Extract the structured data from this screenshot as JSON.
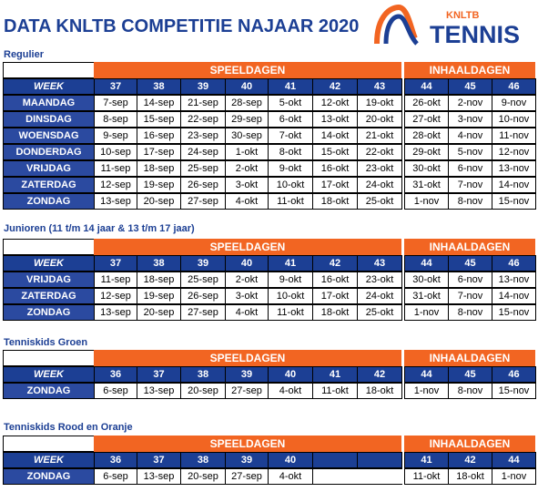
{
  "header": {
    "title": "DATA KNLTB COMPETITIE NAJAAR 2020",
    "logo": {
      "small": "KNLTB",
      "large": "TENNIS"
    }
  },
  "sections": [
    {
      "title": "Regulier",
      "group_1": "SPEELDAGEN",
      "group_2": "INHAALDAGEN",
      "week_label": "WEEK",
      "weeks": [
        "37",
        "38",
        "39",
        "40",
        "41",
        "42",
        "43",
        "44",
        "45",
        "46"
      ],
      "rows": [
        {
          "day": "MAANDAG",
          "dates": [
            "7-sep",
            "14-sep",
            "21-sep",
            "28-sep",
            "5-okt",
            "12-okt",
            "19-okt",
            "26-okt",
            "2-nov",
            "9-nov"
          ]
        },
        {
          "day": "DINSDAG",
          "dates": [
            "8-sep",
            "15-sep",
            "22-sep",
            "29-sep",
            "6-okt",
            "13-okt",
            "20-okt",
            "27-okt",
            "3-nov",
            "10-nov"
          ]
        },
        {
          "day": "WOENSDAG",
          "dates": [
            "9-sep",
            "16-sep",
            "23-sep",
            "30-sep",
            "7-okt",
            "14-okt",
            "21-okt",
            "28-okt",
            "4-nov",
            "11-nov"
          ]
        },
        {
          "day": "DONDERDAG",
          "dates": [
            "10-sep",
            "17-sep",
            "24-sep",
            "1-okt",
            "8-okt",
            "15-okt",
            "22-okt",
            "29-okt",
            "5-nov",
            "12-nov"
          ]
        },
        {
          "day": "VRIJDAG",
          "dates": [
            "11-sep",
            "18-sep",
            "25-sep",
            "2-okt",
            "9-okt",
            "16-okt",
            "23-okt",
            "30-okt",
            "6-nov",
            "13-nov"
          ]
        },
        {
          "day": "ZATERDAG",
          "dates": [
            "12-sep",
            "19-sep",
            "26-sep",
            "3-okt",
            "10-okt",
            "17-okt",
            "24-okt",
            "31-okt",
            "7-nov",
            "14-nov"
          ]
        },
        {
          "day": "ZONDAG",
          "dates": [
            "13-sep",
            "20-sep",
            "27-sep",
            "4-okt",
            "11-okt",
            "18-okt",
            "25-okt",
            "1-nov",
            "8-nov",
            "15-nov"
          ]
        }
      ]
    },
    {
      "title": "Junioren (11 t/m 14 jaar & 13 t/m 17 jaar)",
      "group_1": "SPEELDAGEN",
      "group_2": "INHAALDAGEN",
      "week_label": "WEEK",
      "weeks": [
        "37",
        "38",
        "39",
        "40",
        "41",
        "42",
        "43",
        "44",
        "45",
        "46"
      ],
      "rows": [
        {
          "day": "VRIJDAG",
          "dates": [
            "11-sep",
            "18-sep",
            "25-sep",
            "2-okt",
            "9-okt",
            "16-okt",
            "23-okt",
            "30-okt",
            "6-nov",
            "13-nov"
          ]
        },
        {
          "day": "ZATERDAG",
          "dates": [
            "12-sep",
            "19-sep",
            "26-sep",
            "3-okt",
            "10-okt",
            "17-okt",
            "24-okt",
            "31-okt",
            "7-nov",
            "14-nov"
          ]
        },
        {
          "day": "ZONDAG",
          "dates": [
            "13-sep",
            "20-sep",
            "27-sep",
            "4-okt",
            "11-okt",
            "18-okt",
            "25-okt",
            "1-nov",
            "8-nov",
            "15-nov"
          ]
        }
      ]
    },
    {
      "title": "Tenniskids Groen",
      "group_1": "SPEELDAGEN",
      "group_2": "INHAALDAGEN",
      "week_label": "WEEK",
      "weeks": [
        "36",
        "37",
        "38",
        "39",
        "40",
        "41",
        "42",
        "44",
        "45",
        "46"
      ],
      "rows": [
        {
          "day": "ZONDAG",
          "dates": [
            "6-sep",
            "13-sep",
            "20-sep",
            "27-sep",
            "4-okt",
            "11-okt",
            "18-okt",
            "1-nov",
            "8-nov",
            "15-nov"
          ]
        }
      ]
    },
    {
      "title": "Tenniskids Rood en Oranje",
      "group_1": "SPEELDAGEN",
      "group_2": "INHAALDAGEN",
      "week_label": "WEEK",
      "weeks": [
        "36",
        "37",
        "38",
        "39",
        "40",
        null,
        null,
        "41",
        "42",
        "44"
      ],
      "rows": [
        {
          "day": "ZONDAG",
          "dates": [
            "6-sep",
            "13-sep",
            "20-sep",
            "27-sep",
            "4-okt",
            null,
            null,
            "11-okt",
            "18-okt",
            "1-nov"
          ]
        }
      ]
    }
  ]
}
